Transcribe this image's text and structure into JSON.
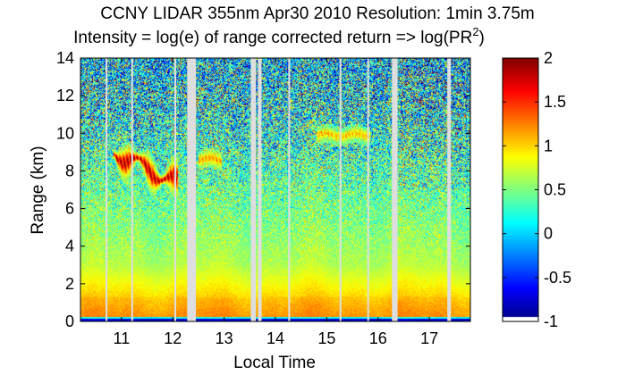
{
  "chart_data": {
    "type": "heatmap",
    "title": "CCNY LIDAR 355nm Apr30 2010 Resolution: 1min 3.75m",
    "subtitle": {
      "prefix": "Intensity = log(e) of range corrected return => log(PR",
      "superscript": "2",
      "suffix": ")"
    },
    "xlabel": "Local Time",
    "ylabel": "Range (km)",
    "xlim": [
      10.2,
      17.8
    ],
    "ylim": [
      0,
      14
    ],
    "xticks": [
      11,
      12,
      13,
      14,
      15,
      16,
      17
    ],
    "yticks": [
      0,
      2,
      4,
      6,
      8,
      10,
      12,
      14
    ],
    "colorbar": {
      "min": -1,
      "max": 2,
      "ticks": [
        -1,
        -0.5,
        0,
        0.5,
        1,
        1.5,
        2
      ],
      "colormap": "jet"
    },
    "data_gaps_local_time": [
      [
        10.69,
        10.72
      ],
      [
        11.19,
        11.22
      ],
      [
        12.03,
        12.06
      ],
      [
        12.28,
        12.45
      ],
      [
        13.52,
        13.62
      ],
      [
        13.66,
        13.73
      ],
      [
        14.25,
        14.28
      ],
      [
        15.25,
        15.28
      ],
      [
        15.79,
        15.82
      ],
      [
        16.27,
        16.38
      ],
      [
        17.35,
        17.42
      ]
    ],
    "cloud_layers": [
      {
        "label": "low cloud",
        "time_range": [
          10.85,
          12.1
        ],
        "range_km": [
          6.6,
          9.6
        ],
        "peak_intensity": 2.0
      },
      {
        "label": "cloud fragment",
        "time_range": [
          12.5,
          12.95
        ],
        "range_km": [
          8.2,
          9.0
        ],
        "peak_intensity": 1.25
      },
      {
        "label": "upper cloud",
        "time_range": [
          14.8,
          15.85
        ],
        "range_km": [
          9.5,
          10.3
        ],
        "peak_intensity": 1.15
      }
    ]
  },
  "colors": {
    "gap": "#dedede",
    "background": "#ffffff",
    "axis": "#000000"
  }
}
